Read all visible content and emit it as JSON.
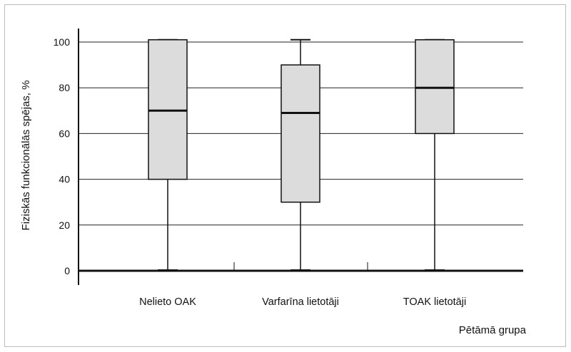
{
  "chart_data": {
    "type": "boxplot",
    "categories": [
      "Nelieto OAK",
      "Varfarīna lietotāji",
      "TOAK lietotāji"
    ],
    "series": [
      {
        "boxes": [
          {
            "min": 0,
            "q1": 40,
            "median": 70,
            "q3": 101,
            "max": 101
          },
          {
            "min": 0,
            "q1": 30,
            "median": 69,
            "q3": 90,
            "max": 101
          },
          {
            "min": 0,
            "q1": 60,
            "median": 80,
            "q3": 101,
            "max": 101
          }
        ]
      }
    ],
    "ylabel": "Fiziskās funkcionālās spējas, %",
    "xlabel": "Pētāmā grupa",
    "yticks": [
      0,
      20,
      40,
      60,
      80,
      100
    ],
    "ylim": [
      -6,
      106
    ],
    "grid": "horizontal",
    "colors": {
      "box_fill": "#dcdcdc",
      "stroke": "#111111",
      "grid": "#222222"
    }
  }
}
